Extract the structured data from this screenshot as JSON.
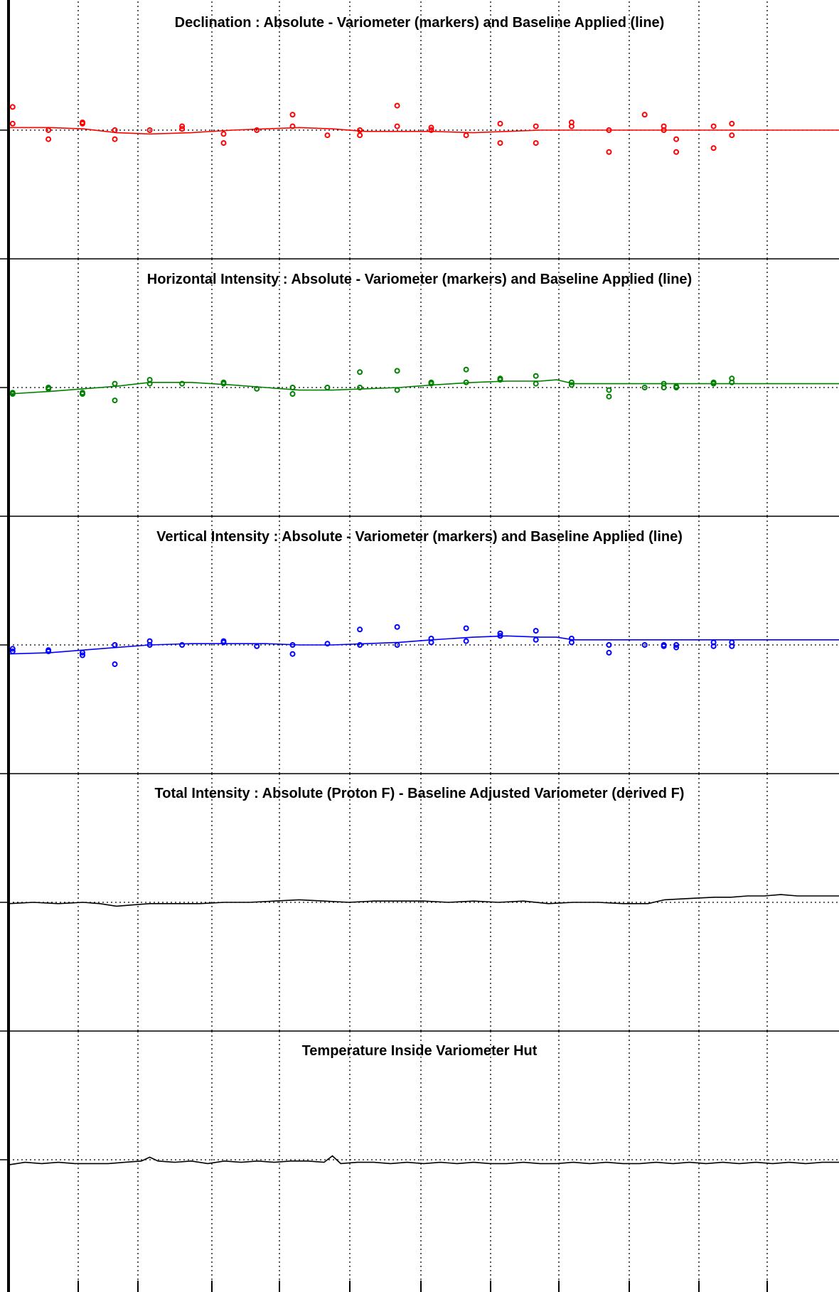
{
  "chart_data": [
    {
      "type": "scatter",
      "title": "Declination : Absolute - Variometer (markers) and Baseline Applied (line)",
      "xlabel": "",
      "ylabel": "",
      "xlim": [
        0,
        100
      ],
      "ylim": [
        -1,
        1
      ],
      "reference_y": 0,
      "grid": true,
      "color": "#ff0000",
      "markers": [
        [
          0.5,
          0.18
        ],
        [
          0.5,
          0.05
        ],
        [
          4.8,
          0.0
        ],
        [
          4.8,
          -0.07
        ],
        [
          8.9,
          0.06
        ],
        [
          8.9,
          0.05
        ],
        [
          12.8,
          0.0
        ],
        [
          12.8,
          -0.07
        ],
        [
          17.0,
          0.0
        ],
        [
          20.9,
          0.03
        ],
        [
          20.9,
          0.01
        ],
        [
          25.9,
          -0.03
        ],
        [
          25.9,
          -0.1
        ],
        [
          29.9,
          0.0
        ],
        [
          34.2,
          0.12
        ],
        [
          34.2,
          0.03
        ],
        [
          38.4,
          -0.04
        ],
        [
          42.3,
          0.0
        ],
        [
          42.3,
          -0.04
        ],
        [
          46.8,
          0.19
        ],
        [
          46.8,
          0.03
        ],
        [
          50.9,
          0.02
        ],
        [
          50.9,
          0.0
        ],
        [
          55.1,
          -0.04
        ],
        [
          59.2,
          0.05
        ],
        [
          59.2,
          -0.1
        ],
        [
          63.5,
          0.03
        ],
        [
          63.5,
          -0.1
        ],
        [
          67.8,
          0.06
        ],
        [
          67.8,
          0.03
        ],
        [
          72.3,
          0.0
        ],
        [
          72.3,
          -0.17
        ],
        [
          76.6,
          0.12
        ],
        [
          78.9,
          0.03
        ],
        [
          78.9,
          0.0
        ],
        [
          80.4,
          -0.07
        ],
        [
          80.4,
          -0.17
        ],
        [
          84.9,
          0.03
        ],
        [
          84.9,
          -0.14
        ],
        [
          87.1,
          0.05
        ],
        [
          87.1,
          -0.04
        ]
      ],
      "line": [
        [
          0,
          0.02
        ],
        [
          5,
          0.02
        ],
        [
          9,
          0.01
        ],
        [
          13,
          -0.02
        ],
        [
          17,
          -0.03
        ],
        [
          22,
          -0.02
        ],
        [
          27,
          0.0
        ],
        [
          31,
          0.01
        ],
        [
          35,
          0.02
        ],
        [
          39,
          0.01
        ],
        [
          43,
          -0.01
        ],
        [
          47,
          -0.01
        ],
        [
          51,
          -0.01
        ],
        [
          56,
          -0.02
        ],
        [
          60,
          -0.01
        ],
        [
          64,
          0.0
        ],
        [
          68,
          0.0
        ],
        [
          72,
          0.0
        ],
        [
          76,
          0.0
        ],
        [
          80,
          0.0
        ],
        [
          85,
          0.0
        ],
        [
          92,
          0.0
        ],
        [
          100,
          0.0
        ]
      ]
    },
    {
      "type": "scatter",
      "title": "Horizontal Intensity : Absolute - Variometer (markers) and Baseline Applied (line)",
      "xlabel": "",
      "ylabel": "",
      "xlim": [
        0,
        100
      ],
      "ylim": [
        -1,
        1
      ],
      "reference_y": 0,
      "grid": true,
      "color": "#008000",
      "markers": [
        [
          0.5,
          -0.04
        ],
        [
          0.5,
          -0.05
        ],
        [
          4.8,
          0.0
        ],
        [
          4.8,
          -0.01
        ],
        [
          8.9,
          -0.04
        ],
        [
          8.9,
          -0.05
        ],
        [
          12.8,
          0.03
        ],
        [
          12.8,
          -0.1
        ],
        [
          17.0,
          0.06
        ],
        [
          17.0,
          0.03
        ],
        [
          20.9,
          0.03
        ],
        [
          25.9,
          0.04
        ],
        [
          25.9,
          0.03
        ],
        [
          29.9,
          -0.01
        ],
        [
          34.2,
          0.0
        ],
        [
          34.2,
          -0.05
        ],
        [
          38.4,
          0.0
        ],
        [
          42.3,
          0.12
        ],
        [
          42.3,
          0.0
        ],
        [
          46.8,
          0.13
        ],
        [
          46.8,
          -0.02
        ],
        [
          50.9,
          0.04
        ],
        [
          50.9,
          0.03
        ],
        [
          55.1,
          0.14
        ],
        [
          55.1,
          0.04
        ],
        [
          59.2,
          0.07
        ],
        [
          59.2,
          0.06
        ],
        [
          63.5,
          0.09
        ],
        [
          63.5,
          0.03
        ],
        [
          67.8,
          0.04
        ],
        [
          67.8,
          0.02
        ],
        [
          72.3,
          -0.02
        ],
        [
          72.3,
          -0.07
        ],
        [
          76.6,
          0.0
        ],
        [
          78.9,
          0.03
        ],
        [
          78.9,
          0.0
        ],
        [
          80.4,
          0.0
        ],
        [
          80.4,
          0.01
        ],
        [
          84.9,
          0.04
        ],
        [
          84.9,
          0.03
        ],
        [
          87.1,
          0.07
        ],
        [
          87.1,
          0.04
        ]
      ],
      "line": [
        [
          0,
          -0.05
        ],
        [
          5,
          -0.03
        ],
        [
          9,
          -0.01
        ],
        [
          13,
          0.01
        ],
        [
          17,
          0.04
        ],
        [
          22,
          0.04
        ],
        [
          27,
          0.02
        ],
        [
          31,
          0.0
        ],
        [
          35,
          -0.02
        ],
        [
          39,
          -0.02
        ],
        [
          43,
          -0.01
        ],
        [
          47,
          0.0
        ],
        [
          51,
          0.02
        ],
        [
          56,
          0.04
        ],
        [
          60,
          0.05
        ],
        [
          64,
          0.05
        ],
        [
          66,
          0.06
        ],
        [
          68,
          0.03
        ],
        [
          72,
          0.03
        ],
        [
          76,
          0.03
        ],
        [
          80,
          0.03
        ],
        [
          85,
          0.03
        ],
        [
          92,
          0.03
        ],
        [
          100,
          0.03
        ]
      ]
    },
    {
      "type": "scatter",
      "title": "Vertical Intensity : Absolute - Variometer (markers) and Baseline Applied (line)",
      "xlabel": "",
      "ylabel": "",
      "xlim": [
        0,
        100
      ],
      "ylim": [
        -1,
        1
      ],
      "reference_y": 0,
      "grid": true,
      "color": "#0000ff",
      "markers": [
        [
          0.5,
          -0.03
        ],
        [
          0.5,
          -0.05
        ],
        [
          4.8,
          -0.05
        ],
        [
          4.8,
          -0.04
        ],
        [
          8.9,
          -0.06
        ],
        [
          8.9,
          -0.08
        ],
        [
          12.8,
          0.0
        ],
        [
          12.8,
          -0.15
        ],
        [
          17.0,
          0.03
        ],
        [
          17.0,
          0.0
        ],
        [
          20.9,
          0.0
        ],
        [
          25.9,
          0.03
        ],
        [
          25.9,
          0.02
        ],
        [
          29.9,
          -0.01
        ],
        [
          34.2,
          0.0
        ],
        [
          34.2,
          -0.07
        ],
        [
          38.4,
          0.01
        ],
        [
          42.3,
          0.12
        ],
        [
          42.3,
          0.0
        ],
        [
          46.8,
          0.14
        ],
        [
          46.8,
          0.0
        ],
        [
          50.9,
          0.05
        ],
        [
          50.9,
          0.02
        ],
        [
          55.1,
          0.13
        ],
        [
          55.1,
          0.03
        ],
        [
          59.2,
          0.09
        ],
        [
          59.2,
          0.07
        ],
        [
          63.5,
          0.11
        ],
        [
          63.5,
          0.04
        ],
        [
          67.8,
          0.05
        ],
        [
          67.8,
          0.02
        ],
        [
          72.3,
          0.0
        ],
        [
          72.3,
          -0.06
        ],
        [
          76.6,
          0.0
        ],
        [
          78.9,
          0.0
        ],
        [
          78.9,
          -0.01
        ],
        [
          80.4,
          0.0
        ],
        [
          80.4,
          -0.02
        ],
        [
          84.9,
          0.02
        ],
        [
          84.9,
          -0.01
        ],
        [
          87.1,
          0.02
        ],
        [
          87.1,
          -0.01
        ]
      ],
      "line": [
        [
          0,
          -0.07
        ],
        [
          5,
          -0.06
        ],
        [
          9,
          -0.04
        ],
        [
          13,
          -0.02
        ],
        [
          17,
          0.0
        ],
        [
          22,
          0.01
        ],
        [
          27,
          0.01
        ],
        [
          31,
          0.01
        ],
        [
          35,
          0.0
        ],
        [
          39,
          0.0
        ],
        [
          43,
          0.01
        ],
        [
          47,
          0.02
        ],
        [
          51,
          0.04
        ],
        [
          56,
          0.06
        ],
        [
          60,
          0.07
        ],
        [
          64,
          0.06
        ],
        [
          66,
          0.06
        ],
        [
          68,
          0.04
        ],
        [
          72,
          0.04
        ],
        [
          76,
          0.04
        ],
        [
          80,
          0.04
        ],
        [
          85,
          0.04
        ],
        [
          92,
          0.04
        ],
        [
          100,
          0.04
        ]
      ]
    },
    {
      "type": "line",
      "title": "Total Intensity : Absolute (Proton F) - Baseline Adjusted Variometer (derived F)",
      "xlabel": "",
      "ylabel": "",
      "xlim": [
        0,
        100
      ],
      "ylim": [
        -1,
        1
      ],
      "reference_y": 0,
      "grid": true,
      "color": "#000000",
      "line": [
        [
          0,
          -0.01
        ],
        [
          3,
          0.0
        ],
        [
          6,
          -0.01
        ],
        [
          9,
          0.0
        ],
        [
          11,
          -0.01
        ],
        [
          13,
          -0.03
        ],
        [
          15,
          -0.02
        ],
        [
          17,
          -0.01
        ],
        [
          20,
          -0.01
        ],
        [
          23,
          -0.01
        ],
        [
          26,
          0.0
        ],
        [
          29,
          0.0
        ],
        [
          32,
          0.01
        ],
        [
          35,
          0.02
        ],
        [
          38,
          0.01
        ],
        [
          41,
          0.0
        ],
        [
          44,
          0.01
        ],
        [
          47,
          0.01
        ],
        [
          50,
          0.01
        ],
        [
          53,
          0.0
        ],
        [
          56,
          0.01
        ],
        [
          59,
          0.0
        ],
        [
          62,
          0.01
        ],
        [
          65,
          -0.01
        ],
        [
          68,
          0.0
        ],
        [
          71,
          0.0
        ],
        [
          74,
          -0.01
        ],
        [
          77,
          -0.01
        ],
        [
          79,
          0.02
        ],
        [
          82,
          0.03
        ],
        [
          85,
          0.04
        ],
        [
          87,
          0.04
        ],
        [
          89,
          0.05
        ],
        [
          91,
          0.05
        ],
        [
          93,
          0.06
        ],
        [
          95,
          0.05
        ],
        [
          97,
          0.05
        ],
        [
          100,
          0.05
        ]
      ]
    },
    {
      "type": "line",
      "title": "Temperature Inside Variometer Hut",
      "xlabel": "",
      "ylabel": "",
      "xlim": [
        0,
        100
      ],
      "ylim": [
        -1,
        1
      ],
      "reference_y": 0,
      "grid": true,
      "color": "#000000",
      "line": [
        [
          0,
          -0.04
        ],
        [
          2,
          -0.02
        ],
        [
          4,
          -0.03
        ],
        [
          6,
          -0.02
        ],
        [
          8,
          -0.03
        ],
        [
          10,
          -0.03
        ],
        [
          12,
          -0.03
        ],
        [
          14,
          -0.02
        ],
        [
          16,
          -0.01
        ],
        [
          17,
          0.02
        ],
        [
          18,
          -0.01
        ],
        [
          20,
          -0.02
        ],
        [
          22,
          -0.01
        ],
        [
          24,
          -0.03
        ],
        [
          26,
          -0.01
        ],
        [
          28,
          -0.02
        ],
        [
          30,
          -0.01
        ],
        [
          32,
          -0.02
        ],
        [
          34,
          -0.01
        ],
        [
          36,
          -0.01
        ],
        [
          38,
          -0.02
        ],
        [
          39,
          0.03
        ],
        [
          40,
          -0.03
        ],
        [
          42,
          -0.02
        ],
        [
          44,
          -0.02
        ],
        [
          46,
          -0.03
        ],
        [
          48,
          -0.02
        ],
        [
          50,
          -0.03
        ],
        [
          52,
          -0.02
        ],
        [
          54,
          -0.03
        ],
        [
          56,
          -0.02
        ],
        [
          58,
          -0.03
        ],
        [
          60,
          -0.03
        ],
        [
          62,
          -0.02
        ],
        [
          64,
          -0.03
        ],
        [
          66,
          -0.03
        ],
        [
          68,
          -0.02
        ],
        [
          70,
          -0.03
        ],
        [
          72,
          -0.02
        ],
        [
          74,
          -0.03
        ],
        [
          76,
          -0.03
        ],
        [
          78,
          -0.02
        ],
        [
          80,
          -0.03
        ],
        [
          82,
          -0.02
        ],
        [
          84,
          -0.03
        ],
        [
          86,
          -0.02
        ],
        [
          88,
          -0.03
        ],
        [
          90,
          -0.02
        ],
        [
          92,
          -0.03
        ],
        [
          94,
          -0.02
        ],
        [
          96,
          -0.03
        ],
        [
          98,
          -0.02
        ],
        [
          100,
          -0.02
        ]
      ]
    }
  ]
}
